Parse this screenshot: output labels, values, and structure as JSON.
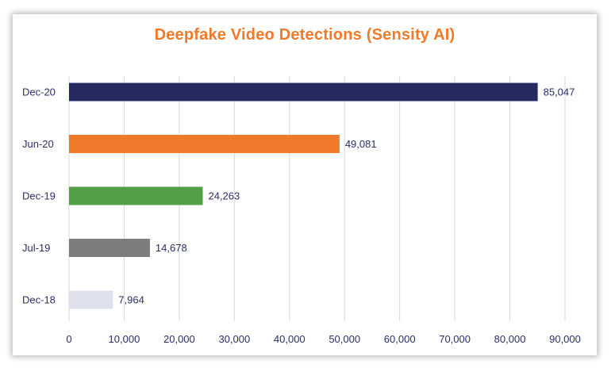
{
  "chart_data": {
    "type": "bar",
    "orientation": "horizontal",
    "title": "Deepfake Video Detections (Sensity AI)",
    "categories": [
      "Dec-20",
      "Jun-20",
      "Dec-19",
      "Jul-19",
      "Dec-18"
    ],
    "values": [
      85047,
      49081,
      24263,
      14678,
      7964
    ],
    "value_labels": [
      "85,047",
      "49,081",
      "24,263",
      "14,678",
      "7,964"
    ],
    "bar_colors": [
      "#272a60",
      "#f07a2a",
      "#51a046",
      "#7c7c7c",
      "#dee1ec"
    ],
    "xlim": [
      0,
      90000
    ],
    "x_ticks": [
      0,
      10000,
      20000,
      30000,
      40000,
      50000,
      60000,
      70000,
      80000,
      90000
    ],
    "x_tick_labels": [
      "0",
      "10,000",
      "20,000",
      "30,000",
      "40,000",
      "50,000",
      "60,000",
      "70,000",
      "80,000",
      "90,000"
    ],
    "xlabel": "",
    "ylabel": "",
    "grid": "vertical",
    "legend": "none"
  },
  "colors": {
    "title": "#f07a2a",
    "text": "#2b2f66",
    "grid": "#d9d9d9"
  }
}
